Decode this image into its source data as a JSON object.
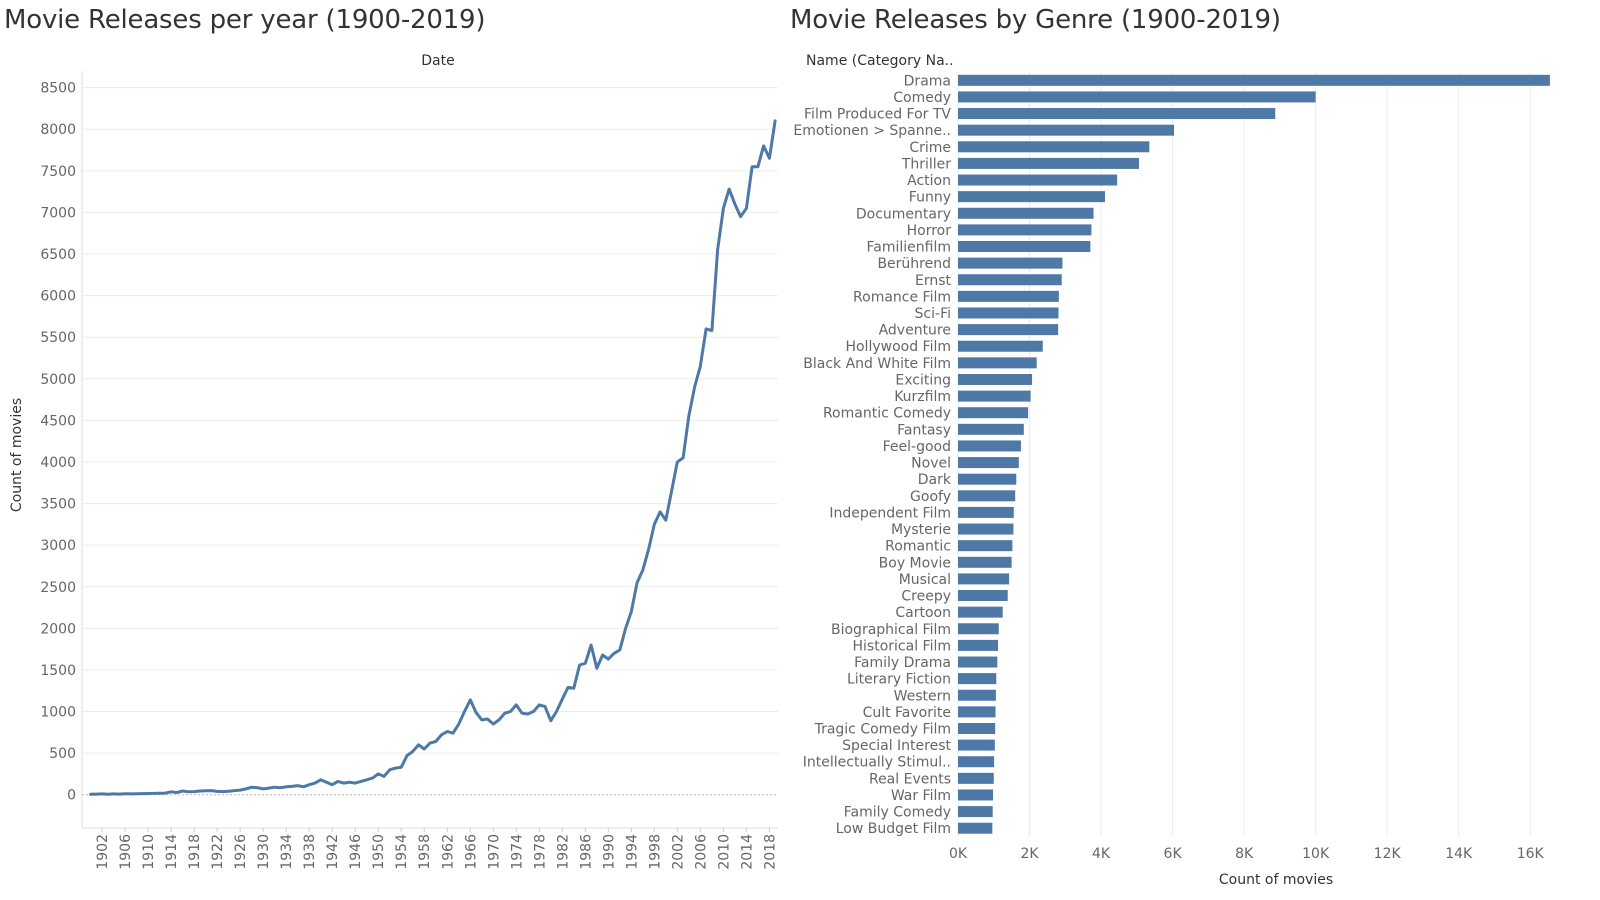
{
  "colors": {
    "series": "#4e79a7",
    "grid": "#ececec",
    "zero_line": "#bbbbbb"
  },
  "chart_data": [
    {
      "type": "line",
      "title": "Movie Releases per year (1900-2019)",
      "header": "Date",
      "xlabel": "",
      "ylabel": "Count of movies",
      "ylim": [
        -400,
        8700
      ],
      "yticks": [
        0,
        500,
        1000,
        1500,
        2000,
        2500,
        3000,
        3500,
        4000,
        4500,
        5000,
        5500,
        6000,
        6500,
        7000,
        7500,
        8000,
        8500
      ],
      "xticks": [
        1902,
        1906,
        1910,
        1914,
        1918,
        1922,
        1926,
        1930,
        1934,
        1938,
        1942,
        1946,
        1950,
        1954,
        1958,
        1962,
        1966,
        1970,
        1974,
        1978,
        1982,
        1986,
        1990,
        1994,
        1998,
        2002,
        2006,
        2010,
        2014,
        2018
      ],
      "grid": true,
      "x": [
        1900,
        1901,
        1902,
        1903,
        1904,
        1905,
        1906,
        1907,
        1908,
        1909,
        1910,
        1911,
        1912,
        1913,
        1914,
        1915,
        1916,
        1917,
        1918,
        1919,
        1920,
        1921,
        1922,
        1923,
        1924,
        1925,
        1926,
        1927,
        1928,
        1929,
        1930,
        1931,
        1932,
        1933,
        1934,
        1935,
        1936,
        1937,
        1938,
        1939,
        1940,
        1941,
        1942,
        1943,
        1944,
        1945,
        1946,
        1947,
        1948,
        1949,
        1950,
        1951,
        1952,
        1953,
        1954,
        1955,
        1956,
        1957,
        1958,
        1959,
        1960,
        1961,
        1962,
        1963,
        1964,
        1965,
        1966,
        1967,
        1968,
        1969,
        1970,
        1971,
        1972,
        1973,
        1974,
        1975,
        1976,
        1977,
        1978,
        1979,
        1980,
        1981,
        1982,
        1983,
        1984,
        1985,
        1986,
        1987,
        1988,
        1989,
        1990,
        1991,
        1992,
        1993,
        1994,
        1995,
        1996,
        1997,
        1998,
        1999,
        2000,
        2001,
        2002,
        2003,
        2004,
        2005,
        2006,
        2007,
        2008,
        2009,
        2010,
        2011,
        2012,
        2013,
        2014,
        2015,
        2016,
        2017,
        2018,
        2019
      ],
      "values": [
        5,
        8,
        10,
        6,
        10,
        8,
        12,
        10,
        12,
        14,
        15,
        16,
        18,
        20,
        35,
        25,
        45,
        35,
        38,
        45,
        48,
        50,
        40,
        38,
        42,
        50,
        55,
        70,
        90,
        85,
        70,
        80,
        90,
        85,
        95,
        100,
        110,
        95,
        120,
        140,
        180,
        150,
        120,
        160,
        140,
        150,
        140,
        160,
        180,
        200,
        250,
        220,
        300,
        320,
        330,
        470,
        520,
        600,
        550,
        620,
        640,
        720,
        760,
        740,
        850,
        1000,
        1140,
        990,
        900,
        910,
        850,
        900,
        980,
        1000,
        1080,
        980,
        970,
        1000,
        1080,
        1060,
        890,
        1000,
        1150,
        1290,
        1280,
        1560,
        1580,
        1800,
        1520,
        1680,
        1630,
        1700,
        1740,
        2000,
        2200,
        2550,
        2700,
        2950,
        3250,
        3400,
        3300,
        3650,
        4000,
        4050,
        4550,
        4900,
        5150,
        5600,
        5580,
        6550,
        7050,
        7280,
        7100,
        6950,
        7050,
        7550,
        7550,
        7800,
        7650,
        8100
      ]
    },
    {
      "type": "bar",
      "orientation": "horizontal",
      "title": "Movie Releases by Genre (1900-2019)",
      "header": "Name (Category Na..",
      "xlabel": "Count of movies",
      "ylabel": "",
      "xlim": [
        0,
        17000
      ],
      "xticks": [
        0,
        2000,
        4000,
        6000,
        8000,
        10000,
        12000,
        14000,
        16000
      ],
      "xtick_labels": [
        "0K",
        "2K",
        "4K",
        "6K",
        "8K",
        "10K",
        "12K",
        "14K",
        "16K"
      ],
      "grid": true,
      "categories": [
        "Drama",
        "Comedy",
        "Film Produced For TV",
        "Emotionen > Spanne..",
        "Crime",
        "Thriller",
        "Action",
        "Funny",
        "Documentary",
        "Horror",
        "Familienfilm",
        "Berührend",
        "Ernst",
        "Romance Film",
        "Sci-Fi",
        "Adventure",
        "Hollywood Film",
        "Black And White Film",
        "Exciting",
        "Kurzfilm",
        "Romantic Comedy",
        "Fantasy",
        "Feel-good",
        "Novel",
        "Dark",
        "Goofy",
        "Independent Film",
        "Mysterie",
        "Romantic",
        "Boy Movie",
        "Musical",
        "Creepy",
        "Cartoon",
        "Biographical Film",
        "Historical Film",
        "Family Drama",
        "Literary Fiction",
        "Western",
        "Cult Favorite",
        "Tragic Comedy Film",
        "Special Interest",
        "Intellectually Stimul..",
        "Real Events",
        "War Film",
        "Family Comedy",
        "Low Budget Film"
      ],
      "values": [
        16550,
        10000,
        8870,
        6040,
        5350,
        5060,
        4450,
        4110,
        3790,
        3730,
        3700,
        2920,
        2900,
        2820,
        2810,
        2800,
        2370,
        2200,
        2070,
        2030,
        1960,
        1840,
        1760,
        1700,
        1630,
        1600,
        1560,
        1550,
        1520,
        1500,
        1430,
        1390,
        1250,
        1140,
        1120,
        1100,
        1070,
        1060,
        1050,
        1040,
        1030,
        1010,
        1000,
        980,
        970,
        960
      ]
    }
  ]
}
